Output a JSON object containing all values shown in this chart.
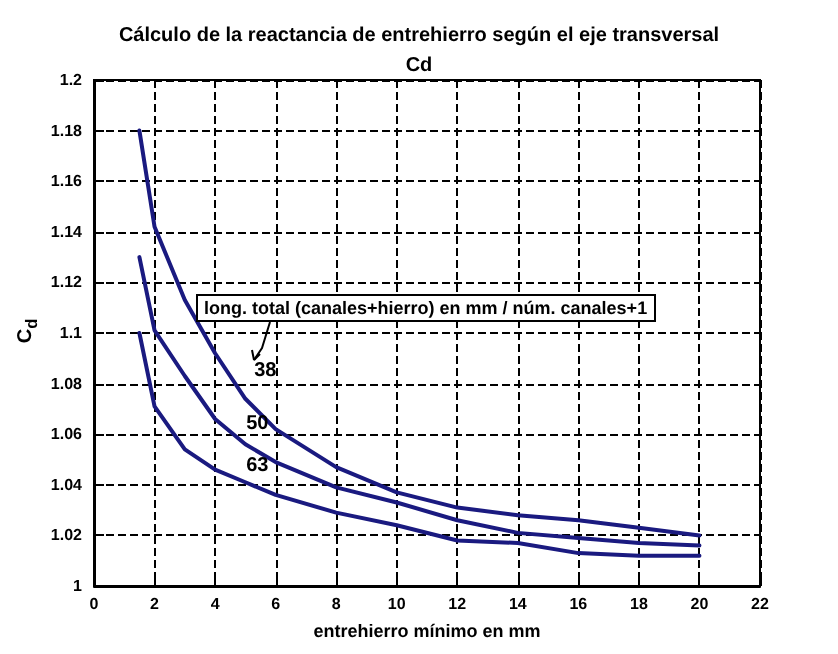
{
  "chart_data": {
    "type": "line",
    "title": "Cálculo de la reactancia de entrehierro según el eje transversal",
    "subtitle": "Cd",
    "xlabel": "entrehierro mínimo en mm",
    "ylabel": "C$_{d}$",
    "annotations": [
      "long. total (canales+hierro) en mm / núm. canales+1"
    ],
    "x": [
      1.5,
      2,
      3,
      4,
      5,
      6,
      8,
      10,
      12,
      14,
      16,
      18,
      20
    ],
    "series": [
      {
        "name": "38",
        "color": "#1a1a80",
        "values": [
          1.18,
          1.142,
          1.113,
          1.092,
          1.074,
          1.062,
          1.047,
          1.037,
          1.031,
          1.028,
          1.026,
          1.023,
          1.02
        ]
      },
      {
        "name": "50",
        "color": "#1a1a80",
        "values": [
          1.13,
          1.101,
          1.083,
          1.066,
          1.056,
          1.049,
          1.039,
          1.033,
          1.026,
          1.021,
          1.019,
          1.017,
          1.016
        ]
      },
      {
        "name": "63",
        "color": "#1a1a80",
        "values": [
          1.1,
          1.071,
          1.054,
          1.046,
          1.041,
          1.036,
          1.029,
          1.024,
          1.018,
          1.017,
          1.013,
          1.012,
          1.012
        ]
      }
    ],
    "xlim": [
      0,
      22
    ],
    "xticks": [
      0,
      2,
      4,
      6,
      8,
      10,
      12,
      14,
      16,
      18,
      20,
      22
    ],
    "ylim": [
      1,
      1.2
    ],
    "yticks": [
      1,
      1.02,
      1.04,
      1.06,
      1.08,
      1.1,
      1.12,
      1.14,
      1.16,
      1.18,
      1.2
    ],
    "grid": true,
    "legend": false,
    "marker": "none",
    "line_style": "solid"
  }
}
